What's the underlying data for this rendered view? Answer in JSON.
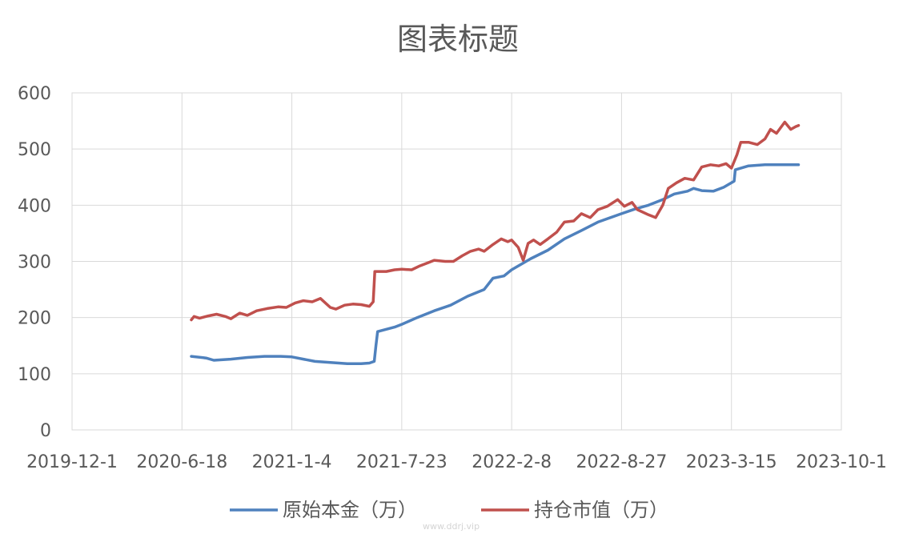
{
  "chart_data": {
    "type": "line",
    "title": "图表标题",
    "xlabel": "",
    "ylabel": "",
    "x_ticks": [
      "2019-12-1",
      "2020-6-18",
      "2021-1-4",
      "2021-7-23",
      "2022-2-8",
      "2022-8-27",
      "2023-3-15",
      "2023-10-1"
    ],
    "x_range": [
      "2019-12-1",
      "2023-10-1"
    ],
    "y_ticks": [
      0,
      100,
      200,
      300,
      400,
      500,
      600
    ],
    "ylim": [
      0,
      600
    ],
    "grid": true,
    "legend": "bottom",
    "series": [
      {
        "name": "原始本金（万）",
        "color": "#4f81bd",
        "points": [
          [
            "2020-7-5",
            131
          ],
          [
            "2020-8-1",
            128
          ],
          [
            "2020-8-15",
            124
          ],
          [
            "2020-9-15",
            126
          ],
          [
            "2020-10-15",
            129
          ],
          [
            "2020-11-15",
            131
          ],
          [
            "2020-12-15",
            131
          ],
          [
            "2021-1-4",
            130
          ],
          [
            "2021-1-25",
            126
          ],
          [
            "2021-2-15",
            122
          ],
          [
            "2021-3-15",
            120
          ],
          [
            "2021-4-15",
            118
          ],
          [
            "2021-5-10",
            118
          ],
          [
            "2021-5-25",
            119
          ],
          [
            "2021-6-3",
            122
          ],
          [
            "2021-6-6",
            150
          ],
          [
            "2021-6-9",
            175
          ],
          [
            "2021-7-10",
            183
          ],
          [
            "2021-7-23",
            188
          ],
          [
            "2021-8-20",
            200
          ],
          [
            "2021-9-20",
            212
          ],
          [
            "2021-10-20",
            222
          ],
          [
            "2021-11-20",
            238
          ],
          [
            "2021-12-20",
            250
          ],
          [
            "2022-1-5",
            270
          ],
          [
            "2022-1-25",
            274
          ],
          [
            "2022-2-8",
            285
          ],
          [
            "2022-3-15",
            305
          ],
          [
            "2022-4-15",
            320
          ],
          [
            "2022-5-15",
            340
          ],
          [
            "2022-6-15",
            355
          ],
          [
            "2022-7-15",
            370
          ],
          [
            "2022-8-27",
            385
          ],
          [
            "2022-9-20",
            393
          ],
          [
            "2022-10-15",
            400
          ],
          [
            "2022-11-10",
            410
          ],
          [
            "2022-12-1",
            420
          ],
          [
            "2022-12-25",
            425
          ],
          [
            "2023-1-5",
            430
          ],
          [
            "2023-1-20",
            426
          ],
          [
            "2023-2-10",
            425
          ],
          [
            "2023-3-1",
            432
          ],
          [
            "2023-3-15",
            440
          ],
          [
            "2023-3-20",
            443
          ],
          [
            "2023-3-22",
            463
          ],
          [
            "2023-4-15",
            470
          ],
          [
            "2023-5-15",
            472
          ],
          [
            "2023-6-15",
            472
          ],
          [
            "2023-7-15",
            472
          ]
        ]
      },
      {
        "name": "持仓市值（万）",
        "color": "#c0504d",
        "points": [
          [
            "2020-7-5",
            196
          ],
          [
            "2020-7-10",
            202
          ],
          [
            "2020-7-20",
            199
          ],
          [
            "2020-8-5",
            203
          ],
          [
            "2020-8-20",
            206
          ],
          [
            "2020-9-5",
            202
          ],
          [
            "2020-9-15",
            198
          ],
          [
            "2020-10-1",
            208
          ],
          [
            "2020-10-15",
            204
          ],
          [
            "2020-11-1",
            212
          ],
          [
            "2020-11-20",
            216
          ],
          [
            "2020-12-10",
            219
          ],
          [
            "2020-12-25",
            218
          ],
          [
            "2021-1-10",
            226
          ],
          [
            "2021-1-25",
            230
          ],
          [
            "2021-2-10",
            228
          ],
          [
            "2021-2-25",
            234
          ],
          [
            "2021-3-15",
            218
          ],
          [
            "2021-3-25",
            215
          ],
          [
            "2021-4-10",
            222
          ],
          [
            "2021-4-25",
            224
          ],
          [
            "2021-5-10",
            223
          ],
          [
            "2021-5-25",
            220
          ],
          [
            "2021-6-1",
            228
          ],
          [
            "2021-6-4",
            282
          ],
          [
            "2021-6-25",
            282
          ],
          [
            "2021-7-10",
            285
          ],
          [
            "2021-7-23",
            286
          ],
          [
            "2021-8-10",
            285
          ],
          [
            "2021-8-25",
            292
          ],
          [
            "2021-9-10",
            298
          ],
          [
            "2021-9-20",
            302
          ],
          [
            "2021-10-10",
            300
          ],
          [
            "2021-10-25",
            300
          ],
          [
            "2021-11-10",
            310
          ],
          [
            "2021-11-25",
            318
          ],
          [
            "2021-12-10",
            322
          ],
          [
            "2021-12-20",
            318
          ],
          [
            "2022-1-5",
            330
          ],
          [
            "2022-1-20",
            340
          ],
          [
            "2022-2-1",
            335
          ],
          [
            "2022-2-8",
            338
          ],
          [
            "2022-2-20",
            325
          ],
          [
            "2022-3-1",
            302
          ],
          [
            "2022-3-10",
            332
          ],
          [
            "2022-3-20",
            338
          ],
          [
            "2022-4-1",
            330
          ],
          [
            "2022-4-15",
            340
          ],
          [
            "2022-5-1",
            352
          ],
          [
            "2022-5-15",
            370
          ],
          [
            "2022-6-1",
            372
          ],
          [
            "2022-6-15",
            385
          ],
          [
            "2022-7-1",
            378
          ],
          [
            "2022-7-15",
            392
          ],
          [
            "2022-8-1",
            398
          ],
          [
            "2022-8-20",
            410
          ],
          [
            "2022-9-1",
            398
          ],
          [
            "2022-9-15",
            405
          ],
          [
            "2022-9-25",
            392
          ],
          [
            "2022-10-15",
            383
          ],
          [
            "2022-10-28",
            378
          ],
          [
            "2022-11-10",
            400
          ],
          [
            "2022-11-20",
            430
          ],
          [
            "2022-12-5",
            440
          ],
          [
            "2022-12-20",
            448
          ],
          [
            "2023-1-5",
            445
          ],
          [
            "2023-1-20",
            468
          ],
          [
            "2023-2-5",
            472
          ],
          [
            "2023-2-20",
            470
          ],
          [
            "2023-3-5",
            474
          ],
          [
            "2023-3-15",
            466
          ],
          [
            "2023-3-25",
            490
          ],
          [
            "2023-4-1",
            512
          ],
          [
            "2023-4-15",
            512
          ],
          [
            "2023-5-1",
            508
          ],
          [
            "2023-5-15",
            518
          ],
          [
            "2023-5-25",
            535
          ],
          [
            "2023-6-5",
            528
          ],
          [
            "2023-6-20",
            548
          ],
          [
            "2023-7-1",
            535
          ],
          [
            "2023-7-10",
            540
          ],
          [
            "2023-7-15",
            542
          ]
        ]
      }
    ]
  },
  "watermark": "www.ddrj.vip"
}
